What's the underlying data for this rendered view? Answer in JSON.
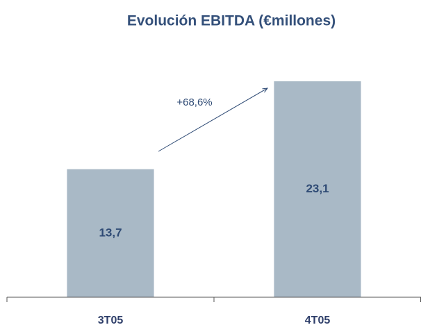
{
  "chart_data": {
    "type": "bar",
    "title": "Evolución EBITDA (€millones)",
    "categories": [
      "3T05",
      "4T05"
    ],
    "values": [
      13.7,
      23.1
    ],
    "value_labels": [
      "13,7",
      "23,1"
    ],
    "color": "#a9b9c6",
    "ylim": [
      0,
      25
    ],
    "annotation": "+68,6%"
  }
}
